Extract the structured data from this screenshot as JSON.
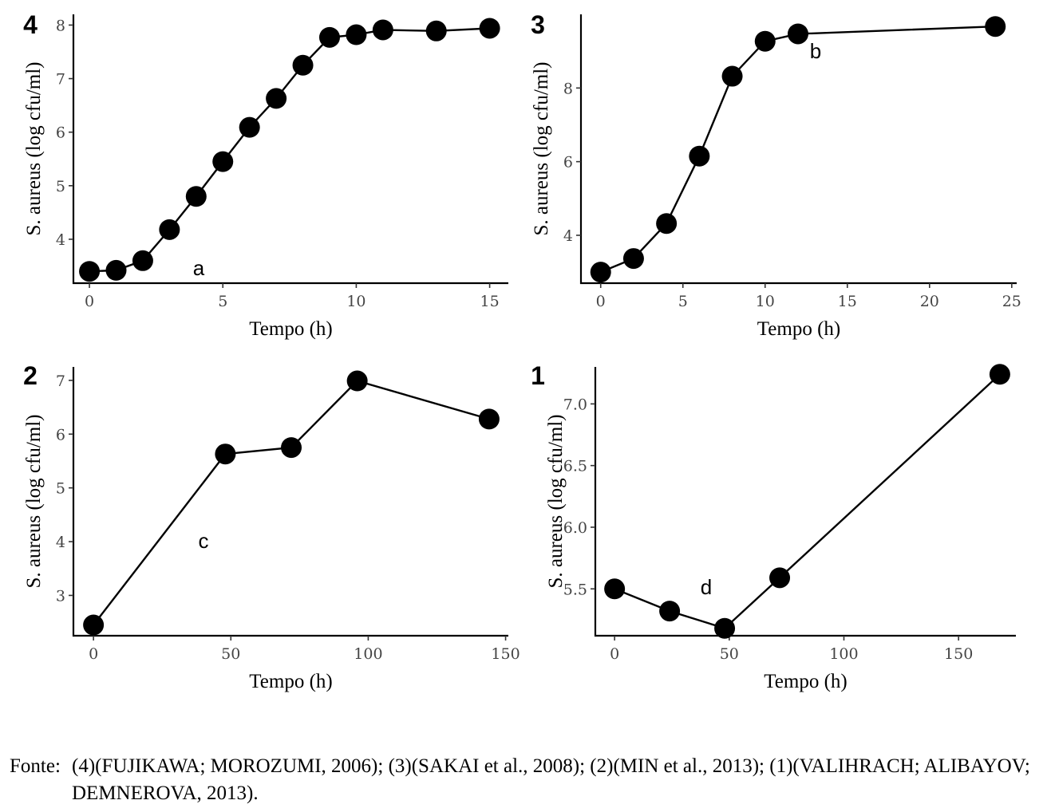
{
  "chart_data": [
    {
      "type": "line",
      "panel_label": "4",
      "annotation": "a",
      "xlabel": "Tempo (h)",
      "ylabel": "S. aureus (log cfu/ml)",
      "xlim": [
        -0.6,
        15.7
      ],
      "ylim": [
        3.18,
        8.2
      ],
      "xticks": [
        0,
        5,
        10,
        15
      ],
      "yticks": [
        4,
        5,
        6,
        7,
        8
      ],
      "xticklabels": [
        "0",
        "5",
        "10",
        "15"
      ],
      "yticklabels": [
        "4",
        "5",
        "6",
        "7",
        "8"
      ],
      "x": [
        0,
        1,
        2,
        3,
        4,
        5,
        6,
        7,
        8,
        9,
        10,
        11,
        13,
        15
      ],
      "y": [
        3.4,
        3.42,
        3.6,
        4.18,
        4.8,
        5.45,
        6.09,
        6.63,
        7.25,
        7.77,
        7.82,
        7.91,
        7.89,
        7.94
      ]
    },
    {
      "type": "line",
      "panel_label": "3",
      "annotation": "b",
      "xlabel": "Tempo (h)",
      "ylabel": "S. aureus (log cfu/ml)",
      "xlim": [
        -1.2,
        25.3
      ],
      "ylim": [
        2.7,
        10.0
      ],
      "xticks": [
        0,
        5,
        10,
        15,
        20,
        25
      ],
      "yticks": [
        4,
        6,
        8
      ],
      "xticklabels": [
        "0",
        "5",
        "10",
        "15",
        "20",
        "25"
      ],
      "yticklabels": [
        "4",
        "6",
        "8"
      ],
      "x": [
        0,
        2,
        4,
        6,
        8,
        10,
        12,
        24
      ],
      "y": [
        3.0,
        3.37,
        4.32,
        6.15,
        8.32,
        9.27,
        9.47,
        9.67
      ]
    },
    {
      "type": "line",
      "panel_label": "2",
      "annotation": "c",
      "xlabel": "Tempo (h)",
      "ylabel": "S. aureus (log cfu/ml)",
      "xlim": [
        -7.3,
        151
      ],
      "ylim": [
        2.25,
        7.25
      ],
      "xticks": [
        0,
        50,
        100,
        150
      ],
      "yticks": [
        3,
        4,
        5,
        6,
        7
      ],
      "xticklabels": [
        "0",
        "50",
        "100",
        "150"
      ],
      "yticklabels": [
        "3",
        "4",
        "5",
        "6",
        "7"
      ],
      "x": [
        0,
        48,
        72,
        96,
        144
      ],
      "y": [
        2.45,
        5.63,
        5.75,
        6.99,
        6.28
      ]
    },
    {
      "type": "line",
      "panel_label": "1",
      "annotation": "d",
      "xlabel": "Tempo (h)",
      "ylabel": "S. aureus (log cfu/ml)",
      "xlim": [
        -8.4,
        175
      ],
      "ylim": [
        5.12,
        7.3
      ],
      "xticks": [
        0,
        50,
        100,
        150
      ],
      "yticks": [
        5.5,
        6.0,
        6.5,
        7.0
      ],
      "xticklabels": [
        "0",
        "50",
        "100",
        "150"
      ],
      "yticklabels": [
        "5.5",
        "6.0",
        "6.5",
        "7.0"
      ],
      "x": [
        0,
        24,
        48,
        72,
        168
      ],
      "y": [
        5.5,
        5.32,
        5.18,
        5.59,
        7.24
      ]
    }
  ],
  "caption": {
    "label": "Fonte:",
    "text": "(4)(FUJIKAWA; MOROZUMI, 2006); (3)(SAKAI et al., 2008); (2)(MIN et al., 2013); (1)(VALIHRACH; ALIBAYOV; DEMNEROVA, 2013)."
  }
}
